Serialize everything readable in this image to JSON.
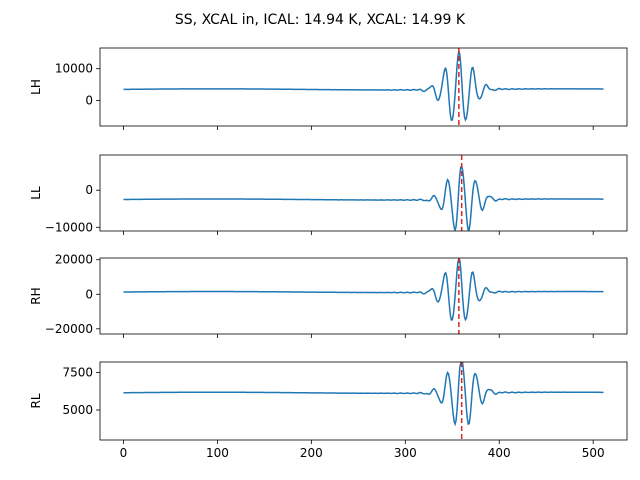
{
  "figure": {
    "title": "SS, XCAL in, ICAL: 14.94 K, XCAL: 14.99 K"
  },
  "chart_data": [
    {
      "type": "line",
      "ylabel": "LH",
      "xlim": [
        -25,
        536
      ],
      "ylim": [
        -8000,
        16500
      ],
      "xticks": [
        0,
        100,
        200,
        300,
        400,
        500
      ],
      "yticks": [
        0,
        10000
      ],
      "ytick_labels": [
        "0",
        "10000"
      ],
      "show_x_tick_labels": false,
      "baseline": 3500,
      "peak_x": 357,
      "peak_y": 16000,
      "trough_y": -7000,
      "vline_x": 357,
      "series_color": "#1f77b4",
      "vline_color": "#d62728"
    },
    {
      "type": "line",
      "ylabel": "LL",
      "xlim": [
        -25,
        536
      ],
      "ylim": [
        -11000,
        9500
      ],
      "xticks": [
        0,
        100,
        200,
        300,
        400,
        500
      ],
      "yticks": [
        0,
        -10000
      ],
      "ytick_labels": [
        "0",
        "−10000"
      ],
      "show_x_tick_labels": false,
      "baseline": -2500,
      "peak_x": 360,
      "peak_y": 8800,
      "trough_y": -9800,
      "vline_x": 360,
      "series_color": "#1f77b4",
      "vline_color": "#d62728"
    },
    {
      "type": "line",
      "ylabel": "RH",
      "xlim": [
        -25,
        536
      ],
      "ylim": [
        -23000,
        21000
      ],
      "xticks": [
        0,
        100,
        200,
        300,
        400,
        500
      ],
      "yticks": [
        20000,
        0,
        -20000
      ],
      "ytick_labels": [
        "20000",
        "0",
        "−20000"
      ],
      "show_x_tick_labels": false,
      "baseline": 1300,
      "peak_x": 357,
      "peak_y": 17500,
      "trough_y": -21000,
      "vline_x": 357,
      "series_color": "#1f77b4",
      "vline_color": "#d62728"
    },
    {
      "type": "line",
      "ylabel": "RL",
      "xlim": [
        -25,
        536
      ],
      "ylim": [
        3000,
        8200
      ],
      "xticks": [
        0,
        100,
        200,
        300,
        400,
        500
      ],
      "xtick_labels": [
        "0",
        "100",
        "200",
        "300",
        "400",
        "500"
      ],
      "yticks": [
        7500,
        5000
      ],
      "ytick_labels": [
        "7500",
        "5000"
      ],
      "show_x_tick_labels": true,
      "baseline": 6150,
      "peak_x": 360,
      "peak_y": 7900,
      "trough_y": 3200,
      "vline_x": 360,
      "series_color": "#1f77b4",
      "vline_color": "#d62728"
    }
  ]
}
